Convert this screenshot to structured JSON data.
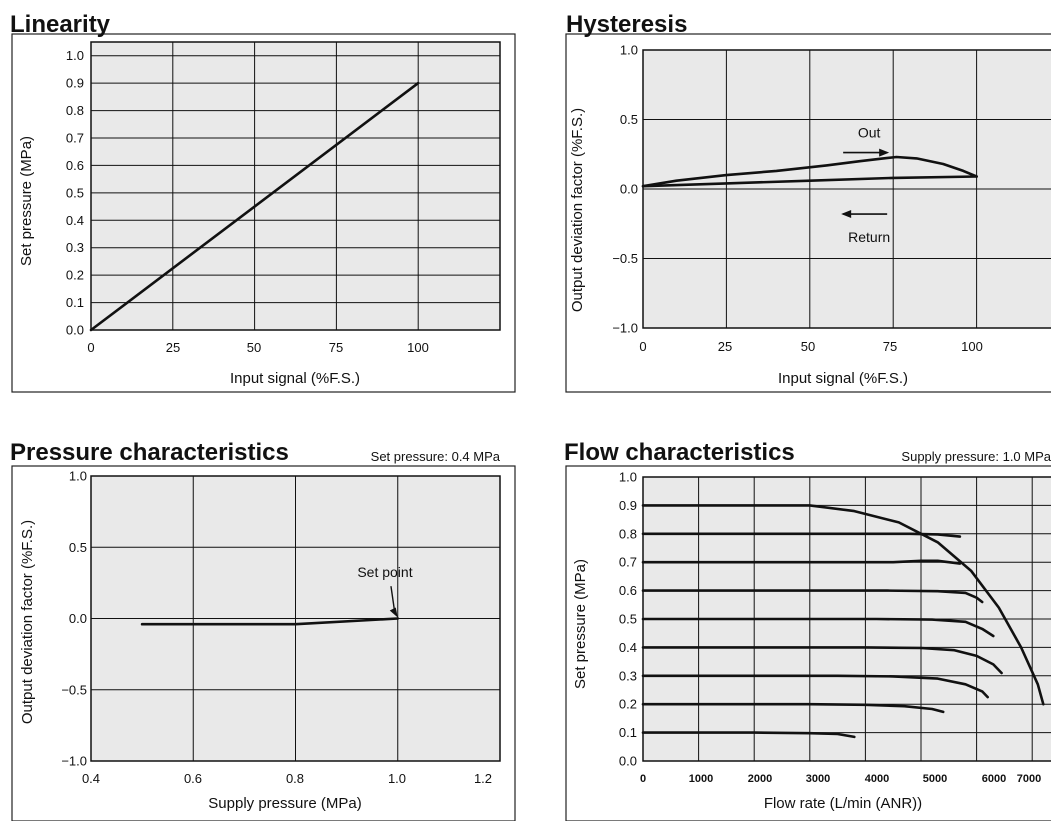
{
  "chart_data": [
    {
      "type": "line",
      "title": "Linearity",
      "xlabel": "Input signal  (%F.S.)",
      "ylabel": "Set pressure  (MPa)",
      "xlim": [
        0,
        125
      ],
      "ylim": [
        0,
        1.05
      ],
      "xticks": [
        "0",
        "25",
        "50",
        "75",
        "100"
      ],
      "yticks": [
        "0.0",
        "0.1",
        "0.2",
        "0.3",
        "0.4",
        "0.5",
        "0.6",
        "0.7",
        "0.8",
        "0.9",
        "1.0"
      ],
      "grid": true,
      "background": "#e9e9e9",
      "series": [
        {
          "x": [
            0,
            100
          ],
          "y": [
            0,
            0.9
          ]
        }
      ]
    },
    {
      "type": "line",
      "title": "Hysteresis",
      "xlabel": "Input signal  (%F.S.)",
      "ylabel": "Output deviation factor  (%F.S.)",
      "xlim": [
        0,
        125
      ],
      "ylim": [
        -1.0,
        1.0
      ],
      "xticks": [
        "0",
        "25",
        "50",
        "75",
        "100"
      ],
      "yticks": [
        "1.0",
        "0.5",
        "0.0",
        "−0.5",
        "−1.0"
      ],
      "grid": true,
      "background": "#e9e9e9",
      "series": [
        {
          "x": [
            0,
            10,
            25,
            40,
            55,
            65,
            72,
            76,
            82,
            90,
            96,
            100
          ],
          "y": [
            0.02,
            0.06,
            0.1,
            0.13,
            0.17,
            0.2,
            0.22,
            0.23,
            0.22,
            0.18,
            0.13,
            0.09
          ]
        },
        {
          "x": [
            0,
            25,
            50,
            75,
            100
          ],
          "y": [
            0.02,
            0.04,
            0.06,
            0.08,
            0.09
          ]
        }
      ],
      "annotations": [
        {
          "text": "Out",
          "x": 60,
          "y": 0.37,
          "arrow": "right"
        },
        {
          "text": "Return",
          "x": 60,
          "y": -0.18,
          "arrow": "left"
        }
      ]
    },
    {
      "type": "line",
      "title": "Pressure characteristics",
      "subtitle": "Set pressure: 0.4 MPa",
      "xlabel": "Supply pressure  (MPa)",
      "ylabel": "Output deviation factor  (%F.S.)",
      "xlim": [
        0.4,
        1.2
      ],
      "ylim": [
        -1.0,
        1.0
      ],
      "xticks": [
        "0.4",
        "0.6",
        "0.8",
        "1.0",
        "1.2"
      ],
      "yticks": [
        "1.0",
        "0.5",
        "0.0",
        "−0.5",
        "−1.0"
      ],
      "grid": true,
      "background": "#e9e9e9",
      "series": [
        {
          "x": [
            0.5,
            0.8,
            1.0
          ],
          "y": [
            -0.04,
            -0.04,
            0.0
          ]
        }
      ],
      "annotations": [
        {
          "text": "Set point",
          "x": 0.975,
          "y": 0.29,
          "target_x": 1.0,
          "target_y": 0.0
        }
      ]
    },
    {
      "type": "line",
      "title": "Flow characteristics",
      "subtitle": "Supply pressure: 1.0 MPa",
      "xlabel": "Flow rate  (L/min (ANR))",
      "ylabel": "Set pressure  (MPa)",
      "xlim": [
        0,
        7500
      ],
      "ylim": [
        0,
        1.0
      ],
      "xticks": [
        "0",
        "1000",
        "2000",
        "3000",
        "4000",
        "5000",
        "6000",
        "7000"
      ],
      "yticks": [
        "0.0",
        "0.1",
        "0.2",
        "0.3",
        "0.4",
        "0.5",
        "0.6",
        "0.7",
        "0.8",
        "0.9",
        "1.0"
      ],
      "grid": true,
      "background": "#e9e9e9",
      "series": [
        {
          "x": [
            0,
            2000,
            3000,
            3500,
            3800
          ],
          "y": [
            0.1,
            0.1,
            0.098,
            0.095,
            0.085
          ]
        },
        {
          "x": [
            0,
            3000,
            4000,
            4700,
            5200,
            5400
          ],
          "y": [
            0.2,
            0.2,
            0.198,
            0.193,
            0.183,
            0.173
          ]
        },
        {
          "x": [
            0,
            3500,
            4500,
            5300,
            5800,
            6100,
            6200
          ],
          "y": [
            0.3,
            0.3,
            0.298,
            0.29,
            0.27,
            0.245,
            0.225
          ]
        },
        {
          "x": [
            0,
            4000,
            5000,
            5600,
            6000,
            6300,
            6450
          ],
          "y": [
            0.4,
            0.4,
            0.398,
            0.39,
            0.37,
            0.34,
            0.31
          ]
        },
        {
          "x": [
            0,
            4200,
            5200,
            5800,
            6100,
            6300
          ],
          "y": [
            0.5,
            0.5,
            0.498,
            0.49,
            0.465,
            0.44
          ]
        },
        {
          "x": [
            0,
            4400,
            5300,
            5800,
            6000,
            6100
          ],
          "y": [
            0.6,
            0.6,
            0.598,
            0.592,
            0.575,
            0.56
          ]
        },
        {
          "x": [
            0,
            4500,
            5000,
            5300,
            5700
          ],
          "y": [
            0.7,
            0.7,
            0.705,
            0.705,
            0.695
          ]
        },
        {
          "x": [
            0,
            4800,
            5300,
            5700
          ],
          "y": [
            0.8,
            0.8,
            0.798,
            0.79
          ]
        },
        {
          "x": [
            0,
            3000,
            3800,
            4600,
            5300,
            5900,
            6400,
            6800,
            7100,
            7200
          ],
          "y": [
            0.9,
            0.9,
            0.88,
            0.84,
            0.77,
            0.67,
            0.54,
            0.4,
            0.27,
            0.2
          ]
        }
      ]
    }
  ]
}
